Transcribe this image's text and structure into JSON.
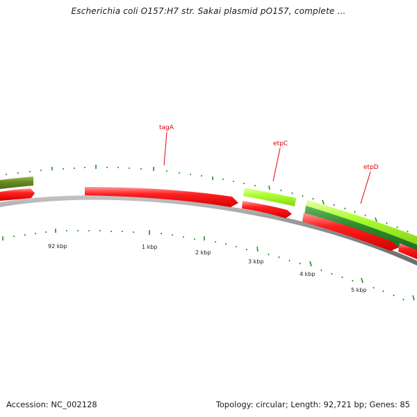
{
  "title": "Escherichia coli O157:H7 str. Sakai plasmid pO157, complete ...",
  "footer": {
    "accession": "Accession: NC_002128",
    "summary": "Topology: circular; Length: 92,721 bp; Genes: 85"
  },
  "colors": {
    "forward_gene_olive": "#6b8e23",
    "forward_gene_light": "#adff2f",
    "forward_gene_dark": "#2e8b2e",
    "reverse_gene": "#ff1a1a",
    "backbone": "#8c8c8c",
    "ticks": "#1e8c1e",
    "gene_label": "#e00000"
  },
  "scale_labels": [
    "92 kbp",
    "1 kbp",
    "2 kbp",
    "3 kbp",
    "4 kbp",
    "5 kbp"
  ],
  "gene_labels": [
    "tagA",
    "etpC",
    "etpD"
  ]
}
